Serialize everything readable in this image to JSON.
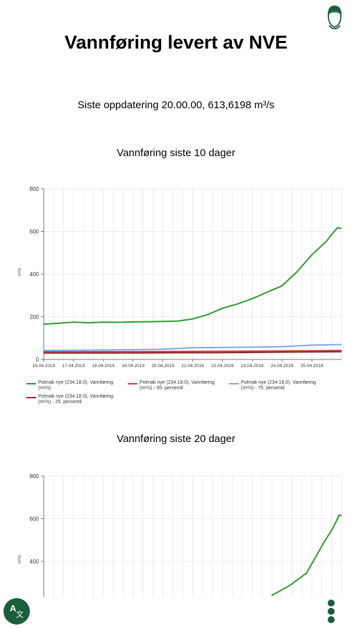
{
  "page": {
    "title": "Vannføring levert av NVE",
    "update_text": "Siste oppdatering 20.00.00, 613,6198 m³/s"
  },
  "colors": {
    "accent": "#1b5e3b",
    "series_flow": "#2e9a2e",
    "series_p50": "#d43a3a",
    "series_p75": "#7fa6e8",
    "series_p25": "#8c2a2a"
  },
  "icons": {
    "avatar": "user-avatar-icon",
    "translate": "translate-icon",
    "menu": "more-vertical-icon"
  },
  "legend": [
    {
      "label": "Polmak nye (234.18.0), Vannføring (m³/s)",
      "color": "#2e9a2e"
    },
    {
      "label": "Polmak nye (234.18.0), Vannføring (m³/s) - 50. persentil",
      "color": "#d43a3a"
    },
    {
      "label": "Polmak nye (234.18.0), Vannføring (m³/s) - 75. persentil",
      "color": "#7fa6e8"
    },
    {
      "label": "Polmak nye (234.18.0), Vannføring (m³/s) - 25. persentil",
      "color": "#8c2a2a"
    }
  ],
  "chart_data": [
    {
      "type": "line",
      "title": "Vannføring siste 10 dager",
      "ylabel": "m³/s",
      "ylim": [
        0,
        800
      ],
      "yticks": [
        0,
        200,
        400,
        600,
        800
      ],
      "xlim": [
        "16.04.2019",
        "26.04.2019"
      ],
      "xtick_labels": [
        "16.04.2019",
        "17.04.2019",
        "18.04.2019",
        "19.04.2019",
        "20.04.2019",
        "21.04.2019",
        "22.04.2019",
        "23.04.2019",
        "24.04.2019",
        "25.04.2019"
      ],
      "grid": true,
      "series": [
        {
          "name": "Polmak nye (234.18.0), Vannføring (m³/s)",
          "color": "#2e9a2e",
          "x": [
            "16.04.2019",
            "16.04.2019 12:00",
            "17.04.2019",
            "17.04.2019 12:00",
            "18.04.2019",
            "18.04.2019 12:00",
            "19.04.2019",
            "19.04.2019 12:00",
            "20.04.2019",
            "20.04.2019 12:00",
            "21.04.2019",
            "21.04.2019 12:00",
            "22.04.2019",
            "22.04.2019 12:00",
            "23.04.2019",
            "23.04.2019 12:00",
            "24.04.2019",
            "24.04.2019 12:00",
            "25.04.2019",
            "25.04.2019 12:00",
            "25.04.2019 18:00",
            "25.04.2019 21:00",
            "26.04.2019"
          ],
          "values": [
            165,
            170,
            175,
            172,
            175,
            174,
            176,
            177,
            178,
            180,
            190,
            210,
            240,
            260,
            285,
            315,
            345,
            410,
            490,
            555,
            600,
            618,
            613
          ]
        },
        {
          "name": "Polmak nye (234.18.0), Vannføring (m³/s) - 50. persentil",
          "color": "#d43a3a",
          "x": [
            "16.04.2019",
            "18.04.2019",
            "20.04.2019",
            "22.04.2019",
            "24.04.2019",
            "26.04.2019"
          ],
          "values": [
            36,
            36,
            37,
            38,
            40,
            42
          ]
        },
        {
          "name": "Polmak nye (234.18.0), Vannføring (m³/s) - 75. persentil",
          "color": "#7fa6e8",
          "x": [
            "16.04.2019",
            "18.04.2019",
            "20.04.2019",
            "21.04.2019",
            "22.04.2019",
            "23.04.2019",
            "24.04.2019",
            "25.04.2019",
            "26.04.2019"
          ],
          "values": [
            42,
            44,
            48,
            55,
            56,
            58,
            60,
            67,
            70
          ]
        },
        {
          "name": "Polmak nye (234.18.0), Vannføring (m³/s) - 25. persentil",
          "color": "#8c2a2a",
          "x": [
            "16.04.2019",
            "18.04.2019",
            "20.04.2019",
            "22.04.2019",
            "24.04.2019",
            "26.04.2019"
          ],
          "values": [
            30,
            30,
            31,
            32,
            34,
            36
          ]
        }
      ]
    },
    {
      "type": "line",
      "title": "Vannføring siste 20 dager",
      "ylabel": "m³/s",
      "ylim": [
        0,
        800
      ],
      "yticks": [
        400,
        600,
        800
      ],
      "grid": true,
      "series": [
        {
          "name": "Polmak nye (234.18.0), Vannføring (m³/s)",
          "color": "#2e9a2e",
          "x": [
            "22.04.2019",
            "23.04.2019",
            "24.04.2019",
            "25.04.2019",
            "25.04.2019 12:00",
            "25.04.2019 21:00",
            "26.04.2019"
          ],
          "values": [
            240,
            285,
            345,
            490,
            555,
            618,
            613
          ]
        }
      ]
    }
  ]
}
